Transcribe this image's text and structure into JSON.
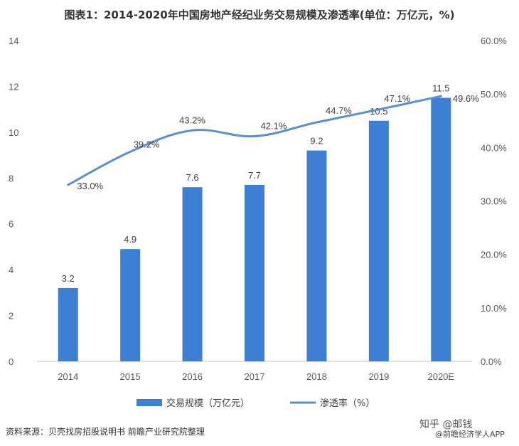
{
  "title": "图表1：2014-2020年中国房地产经纪业务交易规模及渗透率(单位：万亿元，%)",
  "source": "资料来源：贝壳找房招股说明书 前瞻产业研究院整理",
  "credit": "知乎 @邮钱",
  "credit2": "@前瞻经济学人APP",
  "colors": {
    "bar": "#3D7FD3",
    "line": "#5B8FD0",
    "axis": "#BFBFBF"
  },
  "chart_data": {
    "type": "bar",
    "categories": [
      "2014",
      "2015",
      "2016",
      "2017",
      "2018",
      "2019",
      "2020E"
    ],
    "series": [
      {
        "name": "交易规模（万亿元）",
        "type": "bar",
        "axis": "left",
        "values": [
          3.2,
          4.9,
          7.6,
          7.7,
          9.2,
          10.5,
          11.5
        ],
        "labels": [
          "3.2",
          "4.9",
          "7.6",
          "7.7",
          "9.2",
          "10.5",
          "11.5"
        ]
      },
      {
        "name": "渗透率（%）",
        "type": "line",
        "axis": "right",
        "values": [
          33.0,
          39.2,
          43.2,
          42.1,
          44.7,
          47.1,
          49.6
        ],
        "labels": [
          "33.0%",
          "39.2%",
          "43.2%",
          "42.1%",
          "44.7%",
          "47.1%",
          "49.6%"
        ]
      }
    ],
    "y_left": {
      "min": 0,
      "max": 14,
      "ticks": [
        "0",
        "2",
        "4",
        "6",
        "8",
        "10",
        "12",
        "14"
      ]
    },
    "y_right": {
      "min": 0,
      "max": 60,
      "ticks": [
        "0.0%",
        "10.0%",
        "20.0%",
        "30.0%",
        "40.0%",
        "50.0%",
        "60.0%"
      ]
    },
    "legend_position": "bottom"
  }
}
